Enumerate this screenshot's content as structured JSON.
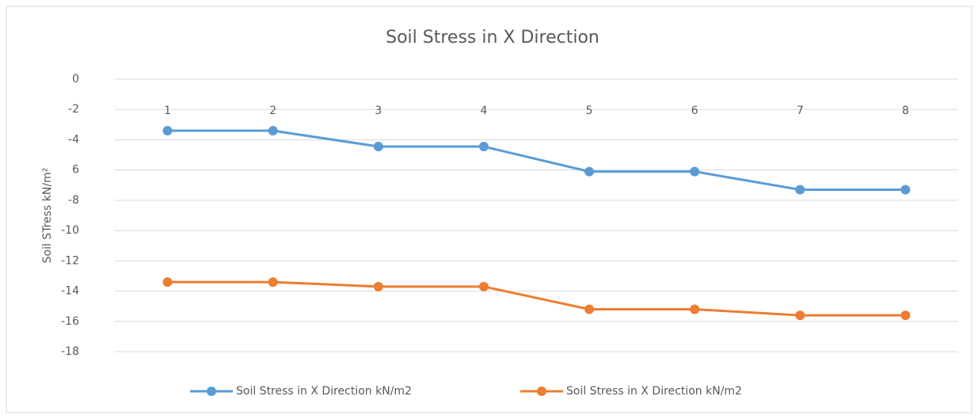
{
  "chart_data": {
    "type": "line",
    "title": "Soil Stress in X Direction",
    "y_label": "Soil STress kN/m²",
    "categories": [
      "1",
      "2",
      "3",
      "4",
      "5",
      "6",
      "7",
      "8"
    ],
    "series": [
      {
        "name": "Soil Stress in X Direction kN/m2",
        "color": "#5b9bd5",
        "values": [
          -3.4,
          -3.4,
          -4.45,
          -4.45,
          -6.1,
          -6.1,
          -7.3,
          -7.3
        ]
      },
      {
        "name": "Soil Stress in X Direction kN/m2",
        "color": "#ed7d31",
        "values": [
          -13.4,
          -13.4,
          -13.7,
          -13.7,
          -15.2,
          -15.2,
          -15.6,
          -15.6
        ]
      }
    ],
    "ylim": [
      -18,
      0
    ],
    "yticks": [
      0,
      -2,
      -4,
      {
        "value": -6,
        "label": "6"
      },
      -8,
      -10,
      -12,
      -14,
      -16,
      -18
    ],
    "grid": true
  }
}
